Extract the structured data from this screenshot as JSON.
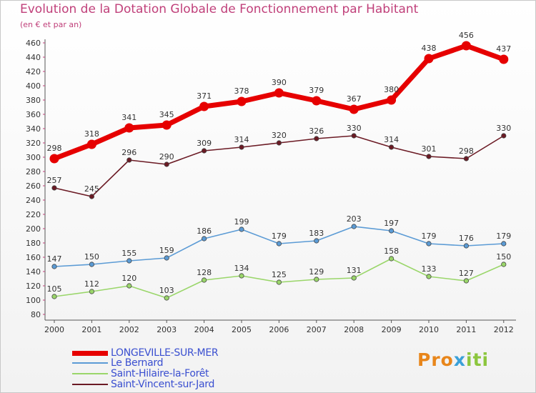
{
  "header": {
    "title": "Evolution de la Dotation Globale de Fonctionnement par Habitant",
    "subtitle": "(en € et par an)"
  },
  "logo": {
    "text": "Proxiti",
    "letters": [
      "P",
      "r",
      "o",
      "x",
      "i",
      "t",
      "i"
    ],
    "colors": [
      "#e8861b",
      "#e8861b",
      "#e8861b",
      "#3aa0d8",
      "#8cc63e",
      "#8cc63e",
      "#8cc63e"
    ]
  },
  "chart_data": {
    "type": "line",
    "title": "Evolution de la Dotation Globale de Fonctionnement par Habitant",
    "subtitle": "(en € et par an)",
    "xlabel": "",
    "ylabel": "",
    "ylim": [
      80,
      460
    ],
    "ytick_step": 20,
    "grid": false,
    "legend_position": "bottom-left",
    "categories": [
      "2000",
      "2001",
      "2002",
      "2003",
      "2004",
      "2005",
      "2006",
      "2007",
      "2008",
      "2009",
      "2010",
      "2011",
      "2012"
    ],
    "series": [
      {
        "name": "LONGEVILLE-SUR-MER",
        "color": "#e60000",
        "bold": true,
        "values": [
          298,
          318,
          341,
          345,
          371,
          378,
          390,
          379,
          367,
          380,
          438,
          456,
          437
        ]
      },
      {
        "name": "Le Bernard",
        "color": "#5b9bd5",
        "bold": false,
        "values": [
          147,
          150,
          155,
          159,
          186,
          199,
          179,
          183,
          203,
          197,
          179,
          176,
          179
        ]
      },
      {
        "name": "Saint-Hilaire-la-Forêt",
        "color": "#9ad66a",
        "bold": false,
        "values": [
          105,
          112,
          120,
          103,
          128,
          134,
          125,
          129,
          131,
          158,
          133,
          127,
          150
        ]
      },
      {
        "name": "Saint-Vincent-sur-Jard",
        "color": "#6b1a24",
        "bold": false,
        "values": [
          257,
          245,
          296,
          290,
          309,
          314,
          320,
          326,
          330,
          314,
          301,
          298,
          330
        ]
      }
    ]
  }
}
